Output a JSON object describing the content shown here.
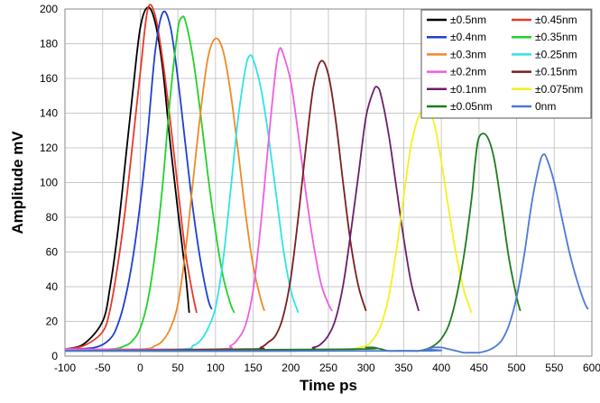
{
  "chart_data": {
    "type": "line",
    "title": "",
    "xlabel": "Time  ps",
    "ylabel": "Amplitude  mV",
    "xlim": [
      -100,
      600
    ],
    "ylim": [
      0,
      200
    ],
    "xticks": [
      -100,
      -50,
      0,
      50,
      100,
      150,
      200,
      250,
      300,
      350,
      400,
      450,
      500,
      550,
      600
    ],
    "yticks": [
      0,
      20,
      40,
      60,
      80,
      100,
      120,
      140,
      160,
      180,
      200
    ],
    "grid": true,
    "legend_position": "top-right",
    "series": [
      {
        "name": "±0.5nm",
        "color": "#000000",
        "x": [
          -100,
          -75,
          -50,
          -40,
          -30,
          -20,
          -10,
          0,
          10,
          20,
          30,
          40,
          50,
          60,
          65
        ],
        "y": [
          4,
          7,
          20,
          40,
          71,
          111,
          152,
          189,
          201,
          192,
          165,
          122,
          84,
          48,
          25
        ]
      },
      {
        "name": "±0.45nm",
        "color": "#e8392a",
        "x": [
          -100,
          -75,
          -50,
          -40,
          -30,
          -20,
          -10,
          0,
          10,
          20,
          30,
          40,
          50,
          60,
          70,
          75
        ],
        "y": [
          4,
          6,
          14,
          27,
          52,
          84,
          123,
          163,
          200,
          196,
          170,
          135,
          97,
          60,
          35,
          25
        ]
      },
      {
        "name": "±0.4nm",
        "color": "#1f3fd1",
        "x": [
          -100,
          -60,
          -40,
          -30,
          -20,
          -10,
          0,
          10,
          20,
          30,
          40,
          50,
          60,
          70,
          80,
          90,
          95
        ],
        "y": [
          4,
          5,
          10,
          18,
          33,
          56,
          88,
          129,
          176,
          198,
          190,
          160,
          122,
          85,
          55,
          33,
          27
        ]
      },
      {
        "name": "±0.35nm",
        "color": "#22d12a",
        "x": [
          -100,
          -40,
          -20,
          -10,
          0,
          10,
          20,
          30,
          40,
          50,
          55,
          60,
          70,
          80,
          90,
          100,
          110,
          120,
          125
        ],
        "y": [
          4,
          4,
          6,
          9,
          16,
          32,
          60,
          100,
          150,
          188,
          195,
          193,
          172,
          140,
          104,
          72,
          46,
          30,
          25
        ]
      },
      {
        "name": "±0.3nm",
        "color": "#ef8a26",
        "x": [
          -100,
          0,
          20,
          30,
          40,
          50,
          60,
          70,
          80,
          90,
          100,
          110,
          120,
          130,
          140,
          150,
          160,
          165
        ],
        "y": [
          4,
          4,
          6,
          9,
          16,
          30,
          60,
          100,
          140,
          172,
          183,
          176,
          152,
          118,
          82,
          52,
          33,
          26
        ]
      },
      {
        "name": "±0.25nm",
        "color": "#2fe3e6",
        "x": [
          -100,
          50,
          70,
          80,
          90,
          100,
          110,
          120,
          130,
          140,
          145,
          150,
          160,
          170,
          180,
          190,
          200,
          210
        ],
        "y": [
          4,
          4,
          6,
          9,
          16,
          28,
          55,
          95,
          137,
          166,
          173,
          171,
          155,
          128,
          95,
          62,
          38,
          25
        ]
      },
      {
        "name": "±0.2nm",
        "color": "#ee5fe0",
        "x": [
          -100,
          100,
          120,
          130,
          140,
          150,
          160,
          170,
          180,
          185,
          190,
          200,
          210,
          220,
          230,
          240,
          250,
          255
        ],
        "y": [
          4,
          4,
          6,
          10,
          18,
          38,
          75,
          122,
          165,
          177,
          174,
          158,
          128,
          94,
          65,
          42,
          30,
          26
        ]
      },
      {
        "name": "±0.15nm",
        "color": "#7a1f1f",
        "x": [
          -100,
          140,
          160,
          170,
          180,
          190,
          200,
          210,
          220,
          230,
          240,
          250,
          260,
          270,
          280,
          290,
          300
        ],
        "y": [
          3,
          4,
          5,
          8,
          12,
          23,
          45,
          80,
          120,
          155,
          170,
          162,
          135,
          98,
          64,
          40,
          26
        ]
      },
      {
        "name": "±0.1nm",
        "color": "#6b1f6b",
        "x": [
          -100,
          200,
          230,
          240,
          250,
          260,
          270,
          280,
          290,
          300,
          310,
          315,
          320,
          330,
          340,
          350,
          360,
          370
        ],
        "y": [
          3,
          3,
          5,
          7,
          12,
          22,
          42,
          72,
          105,
          138,
          153,
          155,
          150,
          128,
          98,
          68,
          42,
          26
        ]
      },
      {
        "name": "±0.075nm",
        "color": "#f2f21e",
        "x": [
          -100,
          250,
          280,
          300,
          310,
          320,
          330,
          340,
          350,
          360,
          370,
          380,
          390,
          400,
          410,
          420,
          430,
          440
        ],
        "y": [
          3,
          3,
          4,
          6,
          10,
          18,
          34,
          60,
          92,
          122,
          138,
          143,
          135,
          112,
          84,
          58,
          38,
          25
        ]
      },
      {
        "name": "±0.05nm",
        "color": "#1f7a1f",
        "x": [
          -100,
          280,
          300,
          310,
          320,
          330,
          340,
          350,
          360,
          370,
          380,
          390,
          400,
          410,
          420,
          430,
          440,
          445,
          450,
          460,
          470,
          480,
          490,
          500,
          505
        ],
        "y": [
          3,
          4,
          5,
          5,
          4,
          3,
          3,
          3,
          3,
          3,
          4,
          6,
          10,
          18,
          34,
          58,
          90,
          112,
          126,
          127,
          114,
          86,
          56,
          34,
          26
        ]
      },
      {
        "name": "0nm",
        "color": "#4d79d6",
        "x": [
          -100,
          360,
          380,
          390,
          400,
          410,
          420,
          430,
          440,
          450,
          460,
          470,
          480,
          490,
          500,
          510,
          520,
          530,
          535,
          540,
          550,
          560,
          570,
          580,
          590,
          595
        ],
        "y": [
          3,
          3,
          4,
          5,
          5,
          4,
          3,
          2,
          2,
          2,
          3,
          5,
          9,
          18,
          34,
          58,
          88,
          110,
          116,
          114,
          100,
          80,
          60,
          44,
          31,
          27
        ]
      }
    ]
  }
}
